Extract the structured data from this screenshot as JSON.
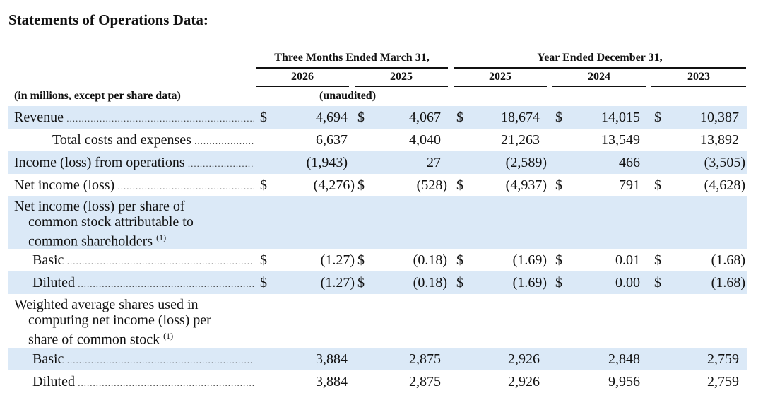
{
  "title": "Statements of Operations Data:",
  "headers": {
    "group_three_months": "Three Months Ended March 31,",
    "group_year": "Year Ended December 31,",
    "columns": [
      "2026",
      "2025",
      "2025",
      "2024",
      "2023"
    ],
    "units_note": "(in millions, except per share data)",
    "unaudited": "(unaudited)"
  },
  "rows": {
    "revenue": {
      "label": "Revenue",
      "values": [
        "4,694",
        "4,067",
        "18,674",
        "14,015",
        "10,387"
      ]
    },
    "total_costs": {
      "label": "Total costs and expenses",
      "values": [
        "6,637",
        "4,040",
        "21,263",
        "13,549",
        "13,892"
      ]
    },
    "income_ops": {
      "label": "Income (loss) from operations",
      "values": [
        "(1,943)",
        "27",
        "(2,589)",
        "466",
        "(3,505)"
      ]
    },
    "net_income": {
      "label": "Net income (loss)",
      "values": [
        "(4,276)",
        "(528)",
        "(4,937)",
        "791",
        "(4,628)"
      ]
    },
    "eps_header": {
      "line1": "Net income (loss) per share of",
      "line2": "common stock attributable to",
      "line3": "common shareholders",
      "footnote": "(1)"
    },
    "eps_basic": {
      "label": "Basic",
      "values": [
        "(1.27)",
        "(0.18)",
        "(1.69)",
        "0.01",
        "(1.68)"
      ]
    },
    "eps_diluted": {
      "label": "Diluted",
      "values": [
        "(1.27)",
        "(0.18)",
        "(1.69)",
        "0.00",
        "(1.68)"
      ]
    },
    "shares_header": {
      "line1": "Weighted average shares used in",
      "line2": "computing net income (loss) per",
      "line3": "share of common stock",
      "footnote": "(1)"
    },
    "shares_basic": {
      "label": "Basic",
      "values": [
        "3,884",
        "2,875",
        "2,926",
        "2,848",
        "2,759"
      ]
    },
    "shares_diluted": {
      "label": "Diluted",
      "values": [
        "3,884",
        "2,875",
        "2,926",
        "9,956",
        "2,759"
      ]
    }
  },
  "currency_symbol": "$"
}
